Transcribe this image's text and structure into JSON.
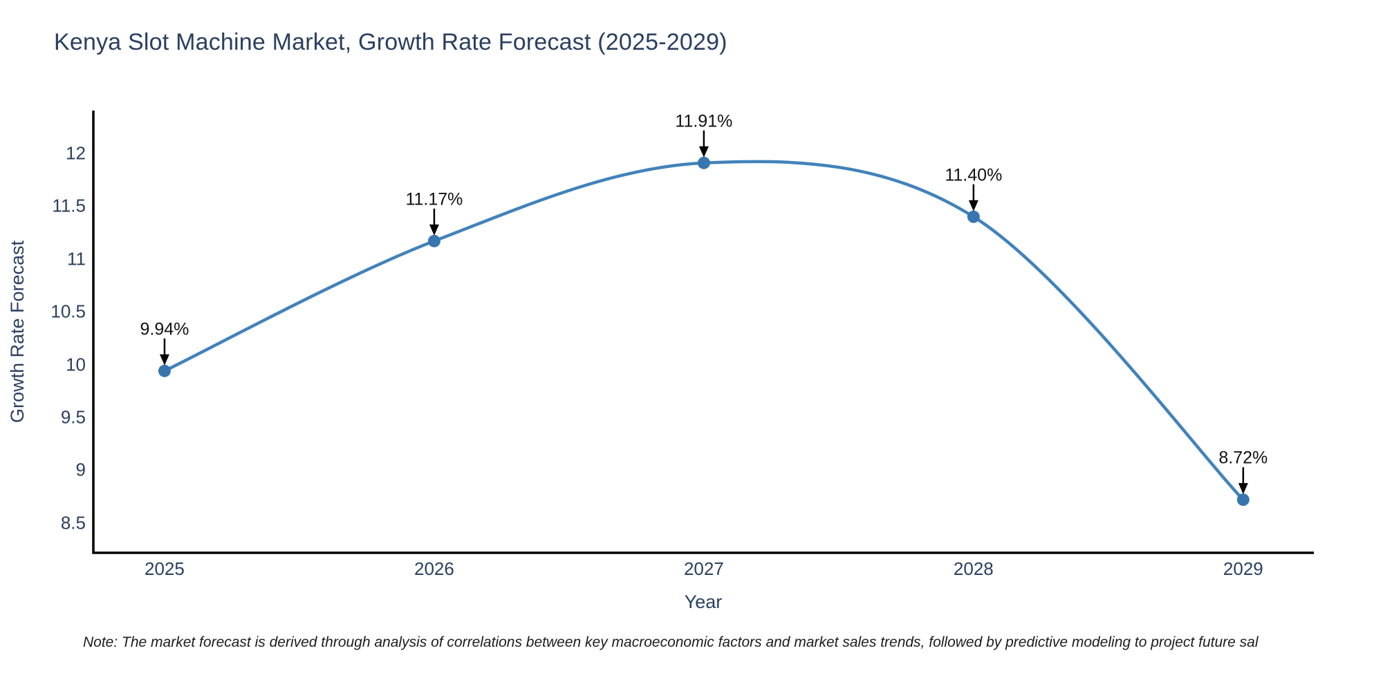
{
  "title": "Kenya Slot Machine Market, Growth Rate Forecast (2025-2029)",
  "note": "Note: The market forecast is derived through analysis of correlations between key macroeconomic factors and market sales trends, followed by predictive modeling to project future sal",
  "chart_data": {
    "type": "line",
    "curve": "spline",
    "title": "Kenya Slot Machine Market, Growth Rate Forecast (2025-2029)",
    "xlabel": "Year",
    "ylabel": "Growth Rate Forecast",
    "x": [
      2025,
      2026,
      2027,
      2028,
      2029
    ],
    "values": [
      9.94,
      11.17,
      11.91,
      11.4,
      8.72
    ],
    "point_labels": [
      "9.94%",
      "11.17%",
      "11.91%",
      "11.40%",
      "8.72%"
    ],
    "yticks": [
      8.5,
      9,
      9.5,
      10,
      10.5,
      11,
      11.5,
      12
    ],
    "ylim": [
      8.217,
      12.406
    ],
    "xlim": [
      2024.736,
      2029.262
    ],
    "grid": false,
    "legend": "none",
    "line_color": "#4182bb",
    "marker_color": "#3876af",
    "axis_color": "#000000",
    "text_color": "#2a3f5f",
    "annotation_color": "#111111"
  }
}
